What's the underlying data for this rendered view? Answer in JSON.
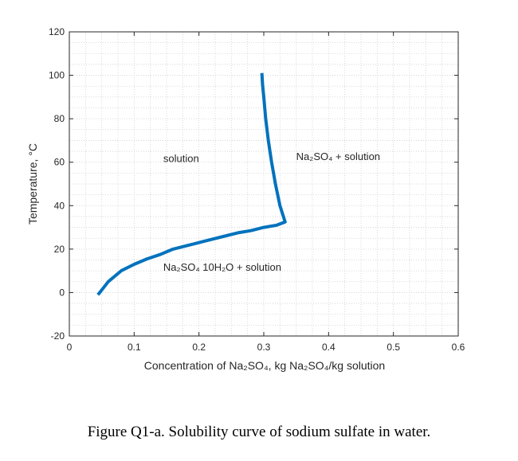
{
  "chart_data": {
    "type": "line",
    "x": [
      0.044,
      0.047,
      0.06,
      0.08,
      0.1,
      0.12,
      0.14,
      0.16,
      0.18,
      0.2,
      0.22,
      0.24,
      0.26,
      0.28,
      0.3,
      0.32,
      0.333,
      0.325,
      0.318,
      0.312,
      0.307,
      0.303,
      0.3,
      0.298,
      0.297
    ],
    "y": [
      -1,
      0,
      5,
      10,
      13,
      15.5,
      17.5,
      20,
      21.5,
      23,
      24.5,
      26,
      27.5,
      28.5,
      30,
      31,
      32.5,
      40,
      50,
      60,
      70,
      80,
      90,
      96,
      101
    ],
    "series": [
      {
        "color": "#0072BD"
      }
    ],
    "xlim": [
      0,
      0.6
    ],
    "ylim": [
      -20,
      120
    ],
    "xticks": [
      0,
      0.1,
      0.2,
      0.3,
      0.4,
      0.5,
      0.6
    ],
    "xtick_labels": [
      "0",
      "0.1",
      "0.2",
      "0.3",
      "0.4",
      "0.5",
      "0.6"
    ],
    "yticks": [
      -20,
      0,
      20,
      40,
      60,
      80,
      100,
      120
    ],
    "ytick_labels": [
      "-20",
      "0",
      "20",
      "40",
      "60",
      "80",
      "100",
      "120"
    ],
    "grid": "on, dotted, minor",
    "xlabel": "Concentration of Na₂SO₄, kg Na₂SO₄/kg solution",
    "ylabel": "Temperature, °C",
    "annotations": [
      {
        "text": "solution",
        "x": 0.145,
        "y": 60
      },
      {
        "text": "Na₂SO₄ + solution",
        "x": 0.35,
        "y": 61
      },
      {
        "text": "Na₂SO₄ 10H₂O + solution",
        "x": 0.145,
        "y": 10
      }
    ]
  },
  "caption": "Figure Q1-a. Solubility curve of sodium sulfate in water."
}
